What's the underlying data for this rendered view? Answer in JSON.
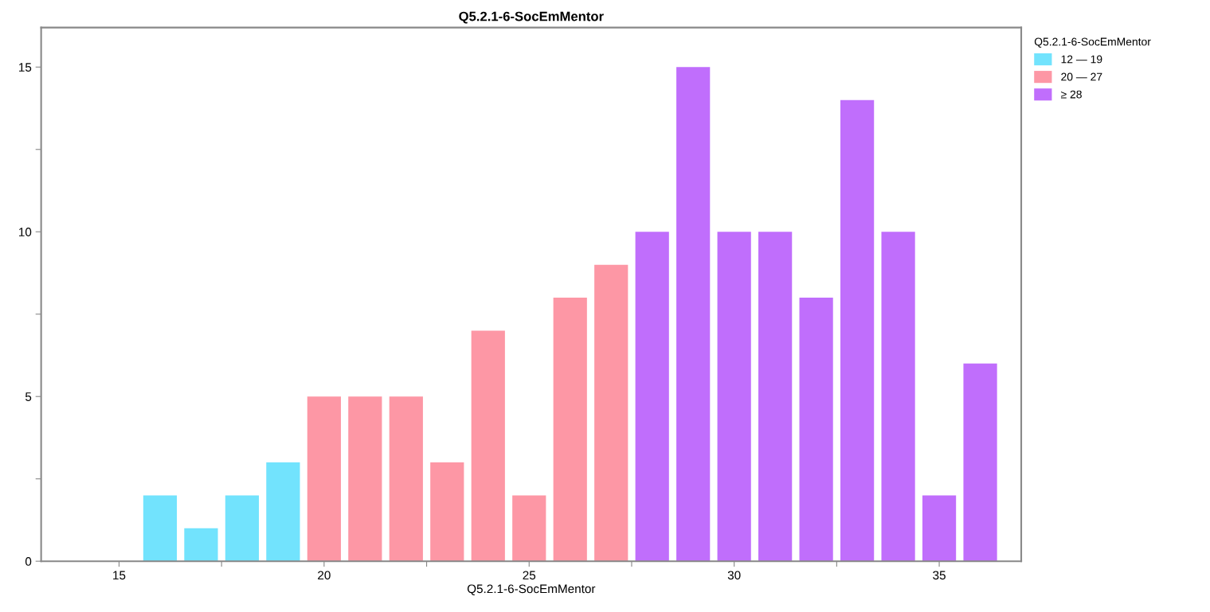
{
  "chart_data": {
    "type": "bar",
    "title": "Q5.2.1-6-SocEmMentor",
    "xlabel": "Q5.2.1-6-SocEmMentor",
    "legend_title": "Q5.2.1-6-SocEmMentor",
    "series": [
      {
        "name": "12 — 19",
        "color": "#72e3fd",
        "x": [
          16,
          17,
          18,
          19
        ],
        "values": [
          2,
          1,
          2,
          3
        ]
      },
      {
        "name": "20 — 27",
        "color": "#fd97a5",
        "x": [
          20,
          21,
          22,
          23,
          24,
          25,
          26,
          27
        ],
        "values": [
          5,
          5,
          5,
          3,
          7,
          2,
          8,
          9
        ]
      },
      {
        "name": "≥ 28",
        "color": "#c06efc",
        "x": [
          28,
          29,
          30,
          31,
          32,
          33,
          34,
          35,
          36
        ],
        "values": [
          10,
          15,
          10,
          10,
          8,
          14,
          10,
          2,
          6
        ]
      }
    ],
    "xlim": [
      13.1,
      37
    ],
    "ylim": [
      0,
      16.2
    ],
    "xticks": [
      15,
      {
        "value": 17.5,
        "label": null
      },
      20,
      {
        "value": 22.5,
        "label": null
      },
      25,
      {
        "value": 27.5,
        "label": null
      },
      30,
      {
        "value": 32.5,
        "label": null
      },
      35
    ],
    "yticks": [
      0,
      {
        "value": 2.5,
        "label": null
      },
      5,
      {
        "value": 7.5,
        "label": null
      },
      10,
      {
        "value": 12.5,
        "label": null
      },
      15
    ],
    "grid": false,
    "legend": "top right"
  }
}
